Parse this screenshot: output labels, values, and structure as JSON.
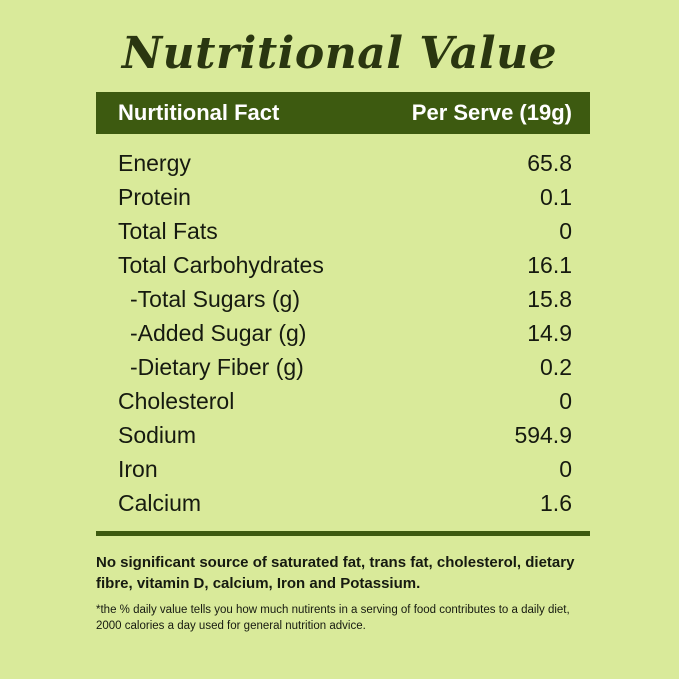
{
  "title": "Nutritional Value",
  "header": {
    "col_fact": "Nurtitional Fact",
    "col_serve": "Per Serve (19g)"
  },
  "rows": [
    {
      "label": "Energy",
      "value": "65.8"
    },
    {
      "label": "Protein",
      "value": "0.1"
    },
    {
      "label": "Total Fats",
      "value": "0"
    },
    {
      "label": "Total Carbohydrates",
      "value": "16.1"
    },
    {
      "label": "-Total Sugars (g)",
      "value": "15.8"
    },
    {
      "label": "-Added Sugar (g)",
      "value": "14.9"
    },
    {
      "label": "-Dietary Fiber (g)",
      "value": "0.2"
    },
    {
      "label": "Cholesterol",
      "value": "0"
    },
    {
      "label": "Sodium",
      "value": "594.9"
    },
    {
      "label": "Iron",
      "value": "0"
    },
    {
      "label": "Calcium",
      "value": "1.6"
    }
  ],
  "note": "No significant source of saturated fat, trans fat, cholesterol, dietary fibre, vitamin D, calcium, Iron and Potassium.",
  "footnote": "*the % daily value tells you how much nutirents in a serving of food contributes to a daily diet, 2000 calories a day used for general nutrition advice.",
  "colors": {
    "background": "#d9ea9a",
    "accent": "#3d5a10",
    "title": "#2a3610",
    "text": "#161a10"
  }
}
